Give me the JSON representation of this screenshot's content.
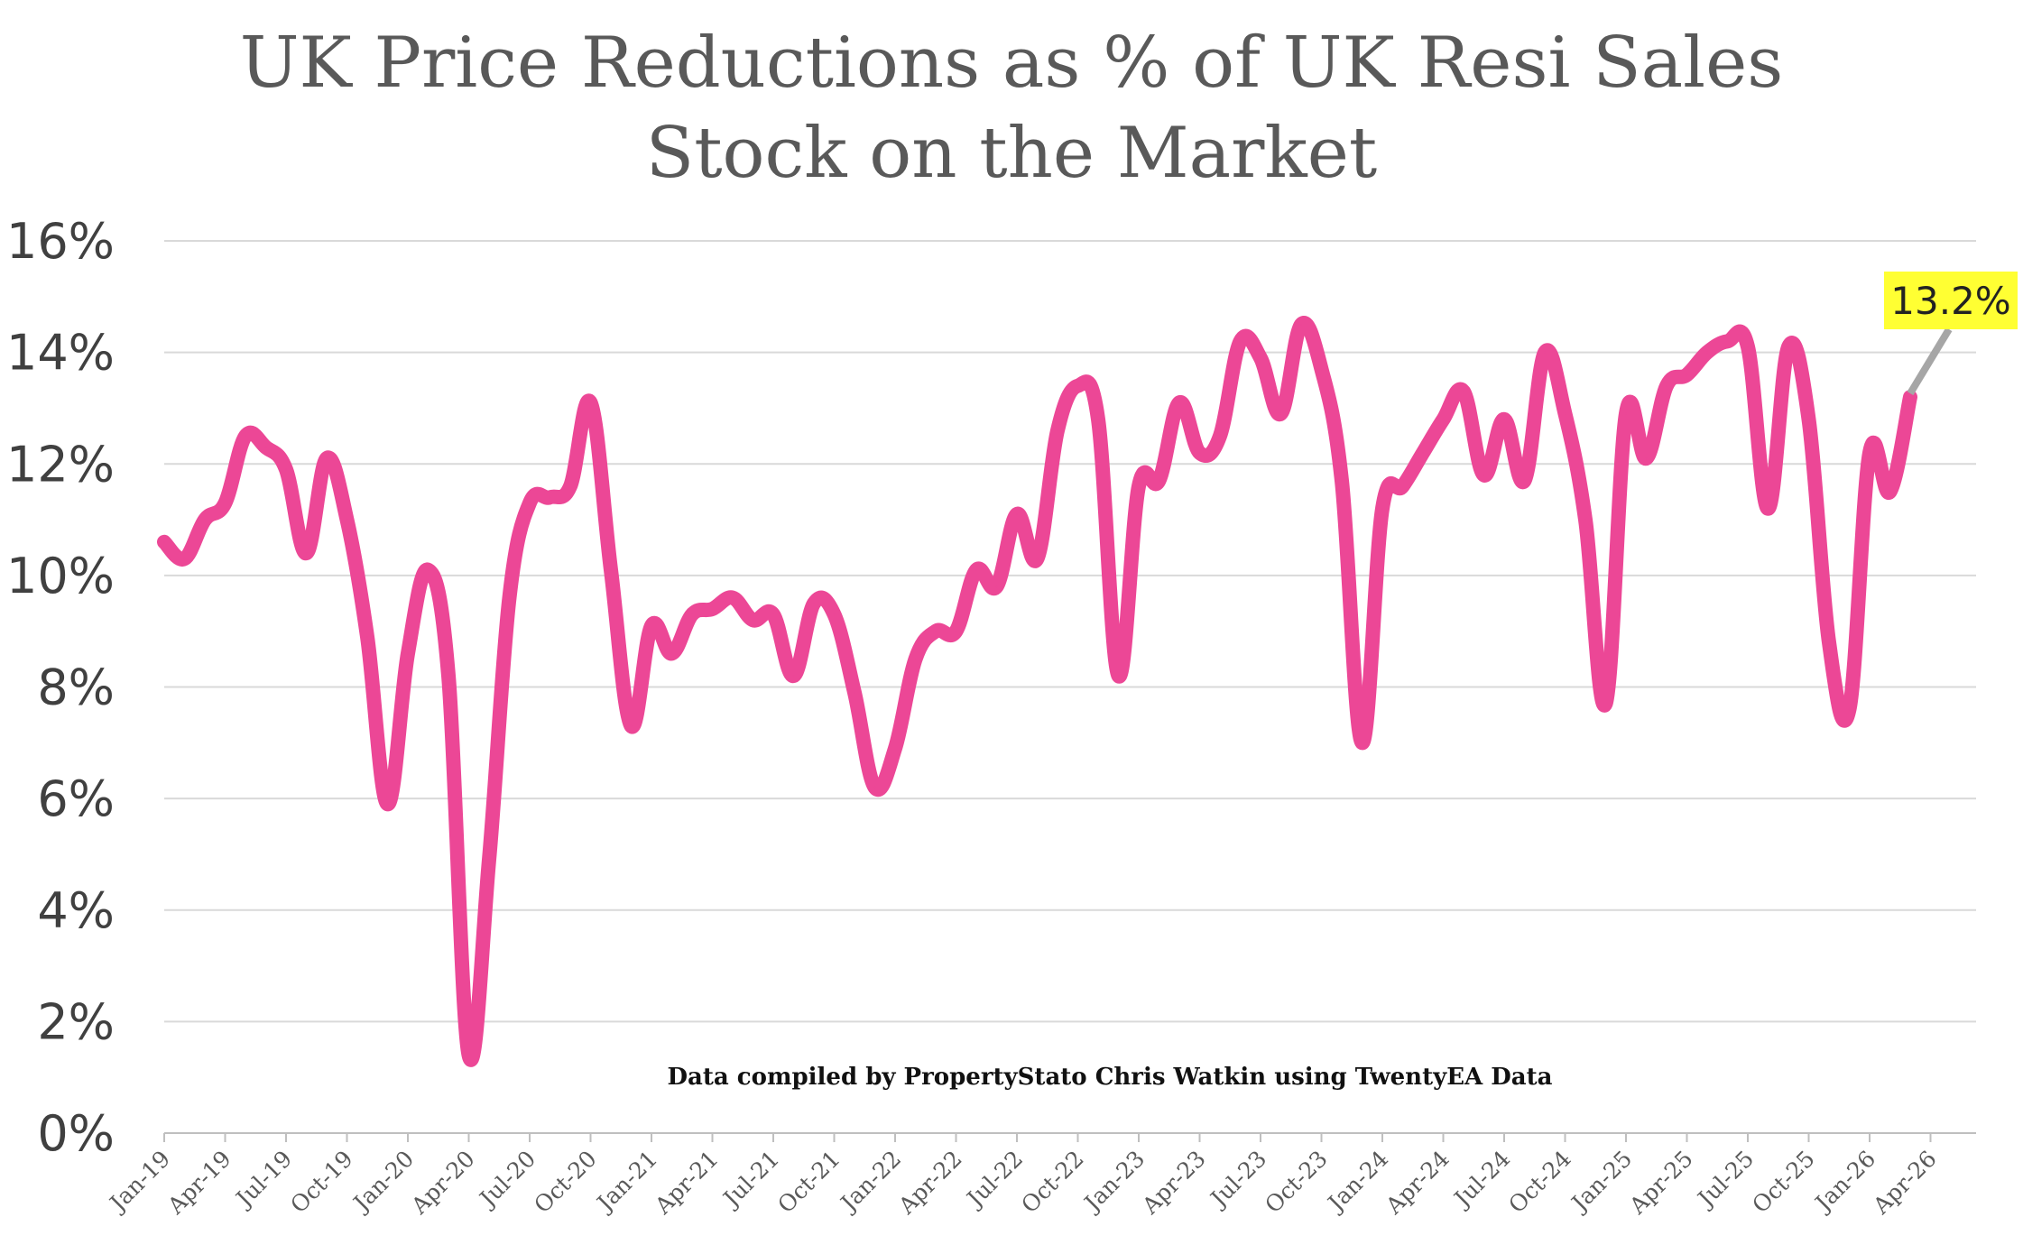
{
  "chart_data": {
    "type": "line",
    "title": [
      "UK Price Reductions as % of UK Resi Sales",
      "Stock on the Market"
    ],
    "xlabel": "",
    "ylabel": "",
    "ylim": [
      0,
      16
    ],
    "yticks": [
      "0%",
      "2%",
      "4%",
      "6%",
      "8%",
      "10%",
      "12%",
      "14%",
      "16%"
    ],
    "xtick_labels": [
      "Jan-19",
      "Apr-19",
      "Jul-19",
      "Oct-19",
      "Jan-20",
      "Apr-20",
      "Jul-20",
      "Oct-20",
      "Jan-21",
      "Apr-21",
      "Jul-21",
      "Oct-21",
      "Jan-22",
      "Apr-22",
      "Jul-22",
      "Oct-22",
      "Jan-23",
      "Apr-23",
      "Jul-23",
      "Oct-23",
      "Jan-24",
      "Apr-24",
      "Jul-24",
      "Oct-24",
      "Jan-25",
      "Apr-25",
      "Jul-25",
      "Oct-25",
      "Jan-26",
      "Apr-26"
    ],
    "grid": true,
    "line_color": "#EC4796",
    "series": [
      {
        "x": [
          "Jan-19",
          "Feb-19",
          "Mar-19",
          "Apr-19",
          "May-19",
          "Jun-19",
          "Jul-19",
          "Aug-19",
          "Sep-19",
          "Oct-19",
          "Nov-19",
          "Dec-19",
          "Jan-20",
          "Feb-20",
          "Mar-20",
          "Apr-20",
          "May-20",
          "Jun-20",
          "Jul-20",
          "Aug-20",
          "Sep-20",
          "Oct-20",
          "Nov-20",
          "Dec-20",
          "Jan-21",
          "Feb-21",
          "Mar-21",
          "Apr-21",
          "May-21",
          "Jun-21",
          "Jul-21",
          "Aug-21",
          "Sep-21",
          "Oct-21",
          "Nov-21",
          "Dec-21",
          "Jan-22",
          "Feb-22",
          "Mar-22",
          "Apr-22",
          "May-22",
          "Jun-22",
          "Jul-22",
          "Aug-22",
          "Sep-22",
          "Oct-22",
          "Nov-22",
          "Dec-22",
          "Jan-23",
          "Feb-23",
          "Mar-23",
          "Apr-23",
          "May-23",
          "Jun-23",
          "Jul-23",
          "Aug-23",
          "Sep-23",
          "Oct-23",
          "Nov-23",
          "Dec-23",
          "Jan-24",
          "Feb-24",
          "Mar-24",
          "Apr-24",
          "May-24",
          "Jun-24",
          "Jul-24",
          "Aug-24",
          "Sep-24",
          "Oct-24",
          "Nov-24",
          "Dec-24",
          "Jan-25",
          "Feb-25",
          "Mar-25",
          "Apr-25",
          "May-25",
          "Jun-25",
          "Jul-25",
          "Aug-25",
          "Sep-25",
          "Oct-25",
          "Nov-25",
          "Dec-25",
          "Jan-26",
          "Feb-26",
          "Mar-26"
        ],
        "values": [
          10.6,
          10.3,
          11.0,
          11.3,
          12.5,
          12.3,
          11.9,
          10.4,
          12.1,
          11.0,
          8.9,
          5.9,
          8.6,
          10.1,
          8.2,
          1.4,
          4.9,
          9.6,
          11.3,
          11.4,
          11.6,
          13.1,
          10.1,
          7.3,
          9.1,
          8.6,
          9.3,
          9.4,
          9.6,
          9.2,
          9.3,
          8.2,
          9.5,
          9.3,
          7.9,
          6.2,
          6.9,
          8.5,
          9.0,
          9.0,
          10.1,
          9.8,
          11.1,
          10.3,
          12.6,
          13.4,
          12.8,
          8.2,
          11.6,
          11.7,
          13.1,
          12.2,
          12.5,
          14.2,
          13.9,
          12.9,
          14.5,
          13.7,
          11.7,
          7.0,
          11.2,
          11.6,
          12.2,
          12.8,
          13.3,
          11.8,
          12.8,
          11.7,
          14.0,
          12.9,
          11.0,
          7.7,
          12.9,
          12.1,
          13.4,
          13.6,
          14.0,
          14.2,
          14.1,
          11.2,
          14.1,
          12.8,
          8.8,
          7.6,
          12.2,
          11.5,
          13.2
        ]
      }
    ],
    "annotation": {
      "label": "13.2%",
      "point": "Mar-26",
      "value": 13.2,
      "background": "#FFFF33",
      "leader_color": "#A6A6A6"
    },
    "credit": "Data compiled by PropertyStato Chris Watkin using TwentyEA Data"
  }
}
